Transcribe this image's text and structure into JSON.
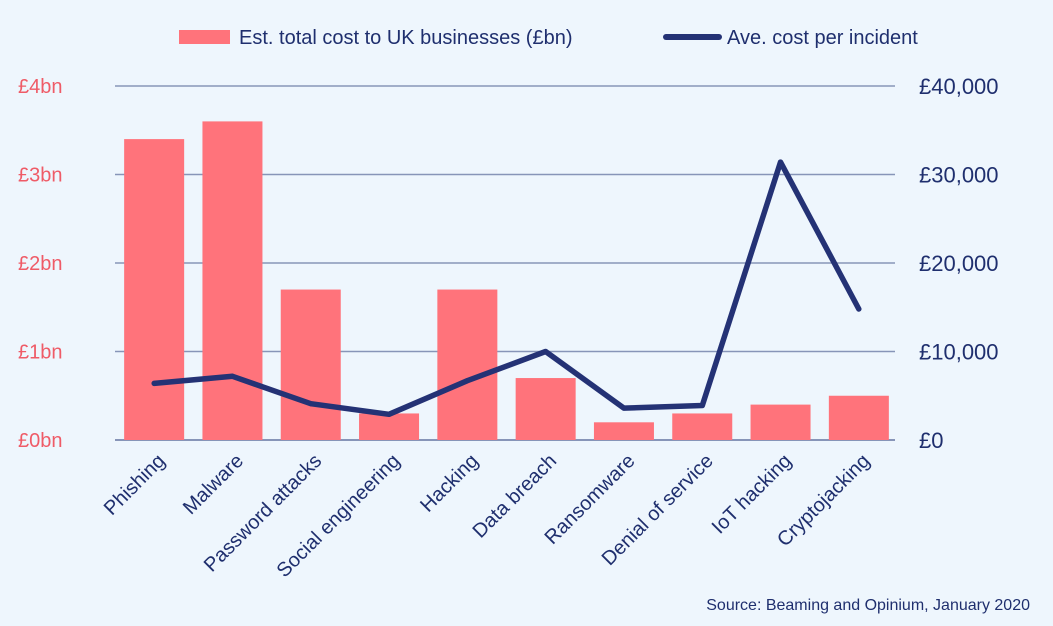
{
  "chart_data": {
    "type": "bar",
    "categories": [
      "Phishing",
      "Malware",
      "Password attacks",
      "Social engineering",
      "Hacking",
      "Data breach",
      "Ransomware",
      "Denial of service",
      "IoT hacking",
      "Cryptojacking"
    ],
    "series": [
      {
        "name": "Est. total cost to UK businesses (£bn)",
        "type": "bar",
        "axis": "left",
        "values": [
          3.4,
          3.6,
          1.7,
          0.3,
          1.7,
          0.7,
          0.2,
          0.3,
          0.4,
          0.5
        ]
      },
      {
        "name": "Ave. cost per incident",
        "type": "line",
        "axis": "right",
        "values": [
          6400,
          7200,
          4100,
          2900,
          6700,
          10000,
          3600,
          3900,
          31400,
          14800
        ]
      }
    ],
    "y_left": {
      "ylim": [
        0,
        4
      ],
      "ticks": [
        0,
        1,
        2,
        3,
        4
      ],
      "tick_labels": [
        "£0bn",
        "£1bn",
        "£2bn",
        "£3bn",
        "£4bn"
      ]
    },
    "y_right": {
      "ylim": [
        0,
        40000
      ],
      "ticks": [
        0,
        10000,
        20000,
        30000,
        40000
      ],
      "tick_labels": [
        "£0",
        "£10,000",
        "£20,000",
        "£30,000",
        "£40,000"
      ]
    },
    "grid": true,
    "legend_placement": "top-center",
    "colors": {
      "bar": "#ff737b",
      "line": "#243275",
      "grid": "#8795b8",
      "left_axis_text": "#ef5b67",
      "text": "#1f2f6e"
    }
  },
  "source": "Source: Beaming and Opinium, January 2020"
}
